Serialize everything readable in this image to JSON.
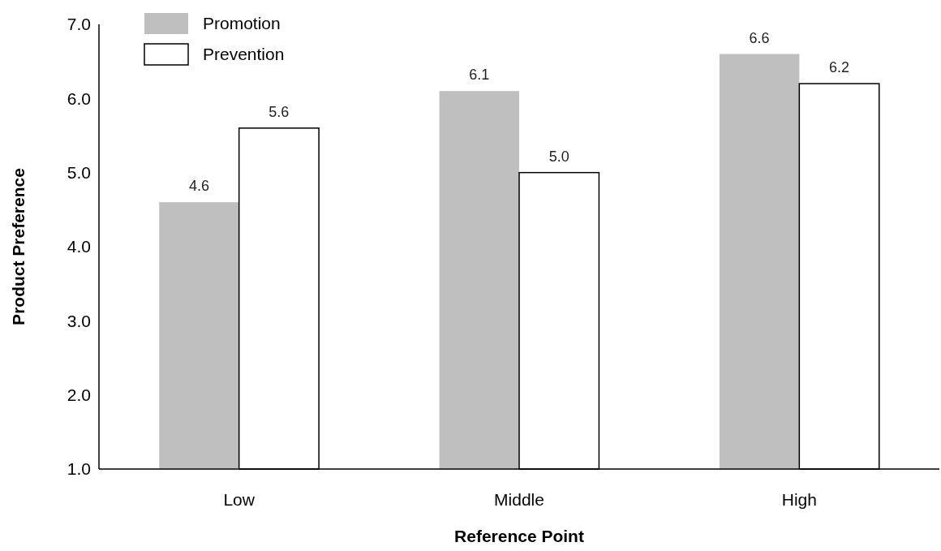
{
  "chart_data": {
    "type": "bar",
    "xlabel": "Reference Point",
    "ylabel": "Product Preference",
    "categories": [
      "Low",
      "Middle",
      "High"
    ],
    "series": [
      {
        "name": "Promotion",
        "color": "#bfbfbf",
        "values": [
          4.6,
          6.1,
          6.6
        ],
        "value_labels": [
          "4.6",
          "6.1",
          "6.6"
        ]
      },
      {
        "name": "Prevention",
        "color": "#ffffff",
        "values": [
          5.6,
          5.0,
          6.2
        ],
        "value_labels": [
          "5.6",
          "5.0",
          "6.2"
        ]
      }
    ],
    "ylim": [
      1,
      7
    ],
    "yticks": [
      {
        "value": 1,
        "label": "1.0"
      },
      {
        "value": 2,
        "label": "2.0"
      },
      {
        "value": 3,
        "label": "3.0"
      },
      {
        "value": 4,
        "label": "4.0"
      },
      {
        "value": 5,
        "label": "5.0"
      },
      {
        "value": 6,
        "label": "6.0"
      },
      {
        "value": 7,
        "label": "7.0"
      }
    ],
    "grid": false,
    "legend": "top left"
  }
}
